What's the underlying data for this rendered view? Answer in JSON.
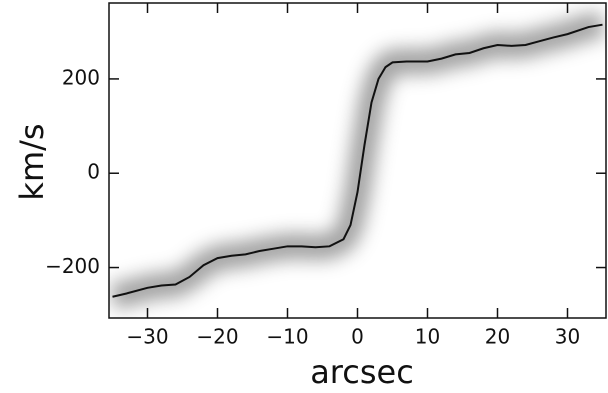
{
  "chart_data": {
    "type": "line",
    "x_label": "arcsec",
    "y_label": "km/s",
    "x": [
      -35,
      -33,
      -30,
      -28,
      -26,
      -24,
      -22,
      -20,
      -18,
      -16,
      -14,
      -12,
      -10,
      -8,
      -6,
      -4,
      -2,
      -1,
      0,
      1,
      2,
      3,
      4,
      5,
      7,
      10,
      12,
      14,
      16,
      18,
      20,
      22,
      24,
      26,
      28,
      30,
      33,
      35
    ],
    "series": [
      {
        "color": "#111111",
        "values": [
          -262,
          -255,
          -243,
          -238,
          -236,
          -220,
          -195,
          -180,
          -175,
          -172,
          -165,
          -160,
          -155,
          -155,
          -157,
          -155,
          -140,
          -110,
          -40,
          60,
          150,
          200,
          225,
          235,
          237,
          237,
          243,
          252,
          255,
          265,
          272,
          270,
          272,
          280,
          288,
          295,
          310,
          315
        ]
      }
    ],
    "xlim": [
      -35.5,
      35.5
    ],
    "ylim": [
      -307,
      361
    ],
    "xticks": [
      {
        "value": -30,
        "label": "−30"
      },
      {
        "value": -20,
        "label": "−20"
      },
      {
        "value": -10,
        "label": "−10"
      },
      0,
      10,
      20,
      30
    ],
    "yticks": [
      {
        "value": -200,
        "label": "−200"
      },
      0,
      200
    ]
  }
}
